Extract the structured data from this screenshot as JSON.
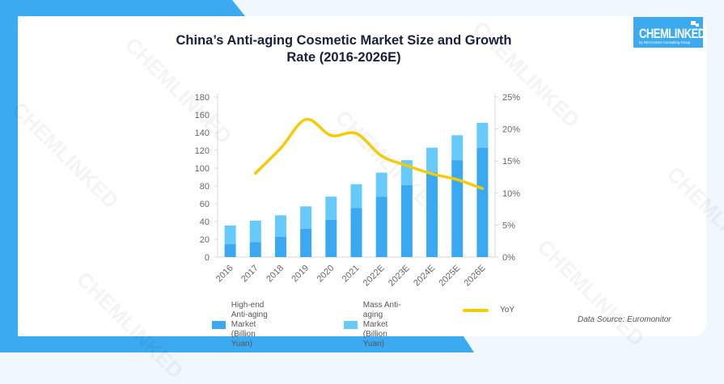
{
  "colors": {
    "high_end": "#3aa9f2",
    "mass": "#66cbfc",
    "yoy": "#f5cb05",
    "brand": "#3baaf0"
  },
  "logo": {
    "brand": "CHEMLINKED",
    "sub": "by REACH24H Consulting Group"
  },
  "watermark": "CHEMLINKED",
  "source": "Data Source: Euromonitor",
  "chart_data": {
    "type": "bar",
    "stacked": true,
    "title": "China’s Anti-aging Cosmetic Market Size and Growth Rate (2016-2026E)",
    "categories": [
      "2016",
      "2017",
      "2018",
      "2019",
      "2020",
      "2021",
      "2022E",
      "2023E",
      "2024E",
      "2025E",
      "2026E"
    ],
    "series": [
      {
        "name": "High-end Anti-aging Market (Billion Yuan)",
        "type": "bar",
        "axis": "left",
        "values": [
          14.5,
          17,
          23,
          32,
          42,
          55,
          68,
          81,
          95,
          109,
          123
        ]
      },
      {
        "name": "Mass Anti-aging Market (Billion Yuan)",
        "type": "bar",
        "axis": "left",
        "values": [
          21,
          24,
          24,
          25,
          26,
          27,
          27,
          28,
          28,
          28,
          28
        ]
      },
      {
        "name": "YoY",
        "type": "line",
        "axis": "right",
        "values": [
          null,
          13.1,
          17.0,
          21.5,
          19.0,
          19.3,
          15.8,
          14.3,
          13.0,
          12.1,
          10.7
        ]
      }
    ],
    "y_left": {
      "min": 0,
      "max": 180,
      "ticks": [
        "0",
        "20",
        "40",
        "60",
        "80",
        "100",
        "120",
        "140",
        "160",
        "180"
      ]
    },
    "y_right": {
      "min": 0,
      "max": 25,
      "ticks": [
        "0%",
        "5%",
        "10%",
        "15%",
        "20%",
        "25%"
      ]
    },
    "xlabel": "",
    "ylabel": "",
    "grid": false,
    "legend_position": "bottom",
    "legend": [
      {
        "label": "High-end Anti-aging\nMarket (Billion Yuan)",
        "kind": "bar"
      },
      {
        "label": "Mass Anti-aging\nMarket (Billion Yuan)",
        "kind": "bar"
      },
      {
        "label": "YoY",
        "kind": "line"
      }
    ]
  }
}
